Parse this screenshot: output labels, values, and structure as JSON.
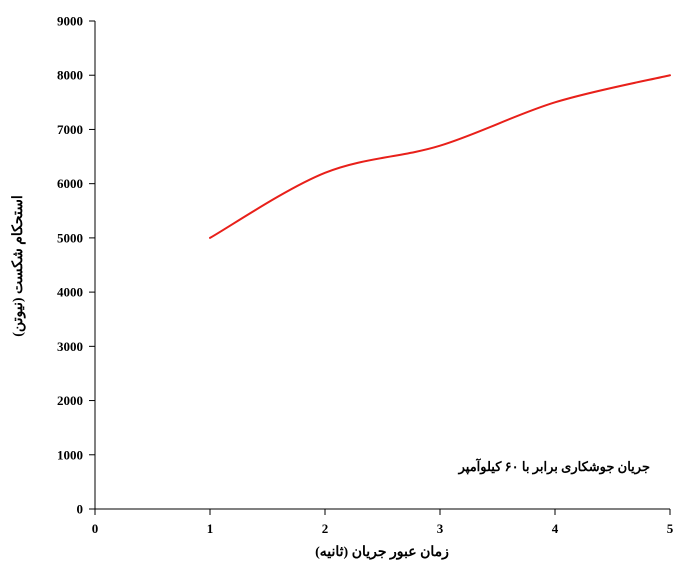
{
  "chart_data": {
    "type": "line",
    "x": [
      1,
      2,
      3,
      4,
      5
    ],
    "series": [
      {
        "values": [
          5000,
          6200,
          6700,
          7500,
          8000
        ],
        "color": "#e8201a"
      }
    ],
    "xlabel": "زمان عبور جریان (ثانیه)",
    "ylabel": "استحکام شکست (نیوتن)",
    "xlim": [
      0,
      5
    ],
    "ylim": [
      0,
      9000
    ],
    "x_ticks": [
      0,
      1,
      2,
      3,
      4,
      5
    ],
    "y_ticks": [
      0,
      1000,
      2000,
      3000,
      4000,
      5000,
      6000,
      7000,
      8000,
      9000
    ],
    "x_tick_labels": [
      "0",
      "1",
      "2",
      "3",
      "4",
      "5"
    ],
    "y_tick_labels": [
      "0",
      "1000",
      "2000",
      "3000",
      "4000",
      "5000",
      "6000",
      "7000",
      "8000",
      "9000"
    ],
    "annotation": "جریان جوشکاری برابر با ۶۰ کیلوآمپر",
    "grid": false,
    "smooth": true
  }
}
